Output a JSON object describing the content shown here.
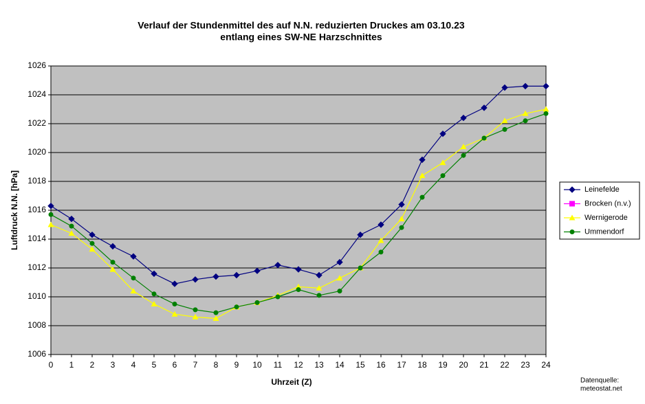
{
  "chart_data": {
    "type": "line",
    "title": [
      "Verlauf der Stundenmittel des auf N.N. reduzierten Druckes am 03.10.23",
      "entlang eines SW-NE Harzschnittes"
    ],
    "x_label": "Uhrzeit (Z)",
    "y_label": "Luftdruck N.N. [hPa]",
    "source": [
      "Datenquelle:",
      "meteostat.net"
    ],
    "x": [
      0,
      1,
      2,
      3,
      4,
      5,
      6,
      7,
      8,
      9,
      10,
      11,
      12,
      13,
      14,
      15,
      16,
      17,
      18,
      19,
      20,
      21,
      22,
      23,
      24
    ],
    "xlim": [
      0,
      24
    ],
    "xticks": [
      0,
      1,
      2,
      3,
      4,
      5,
      6,
      7,
      8,
      9,
      10,
      11,
      12,
      13,
      14,
      15,
      16,
      17,
      18,
      19,
      20,
      21,
      22,
      23,
      24
    ],
    "ylim": [
      1006,
      1026
    ],
    "yticks": [
      1006,
      1008,
      1010,
      1012,
      1014,
      1016,
      1018,
      1020,
      1022,
      1024,
      1026
    ],
    "grid": true,
    "legend": "right",
    "series": [
      {
        "name": "Leinefelde",
        "color": "#000080",
        "marker": "diamond",
        "values": [
          1016.3,
          1015.4,
          1014.3,
          1013.5,
          1012.8,
          1011.6,
          1010.9,
          1011.2,
          1011.4,
          1011.5,
          1011.8,
          1012.2,
          1011.9,
          1011.5,
          1012.4,
          1014.3,
          1015.0,
          1016.4,
          1019.5,
          1021.3,
          1022.4,
          1023.1,
          1024.5,
          1024.6,
          1024.6
        ]
      },
      {
        "name": "Brocken (n.v.)",
        "color": "#ff00ff",
        "marker": "square",
        "values": [
          null,
          null,
          null,
          null,
          null,
          null,
          null,
          null,
          null,
          null,
          null,
          null,
          null,
          null,
          null,
          null,
          null,
          null,
          null,
          null,
          null,
          null,
          null,
          null,
          null
        ]
      },
      {
        "name": "Wernigerode",
        "color": "#ffff00",
        "marker": "triangle",
        "values": [
          1015.0,
          1014.4,
          1013.3,
          1011.9,
          1010.4,
          1009.5,
          1008.8,
          1008.6,
          1008.5,
          1009.3,
          1009.6,
          1010.1,
          1010.7,
          1010.6,
          1011.3,
          1012.0,
          1013.9,
          1015.4,
          1018.4,
          1019.3,
          1020.4,
          1021.0,
          1022.2,
          1022.7,
          1023.0
        ]
      },
      {
        "name": "Ummendorf",
        "color": "#008000",
        "marker": "circle",
        "values": [
          1015.7,
          1014.9,
          1013.7,
          1012.4,
          1011.3,
          1010.2,
          1009.5,
          1009.1,
          1008.9,
          1009.3,
          1009.6,
          1010.0,
          1010.5,
          1010.1,
          1010.4,
          1012.0,
          1013.1,
          1014.8,
          1016.9,
          1018.4,
          1019.8,
          1021.0,
          1021.6,
          1022.2,
          1022.7
        ]
      }
    ]
  }
}
